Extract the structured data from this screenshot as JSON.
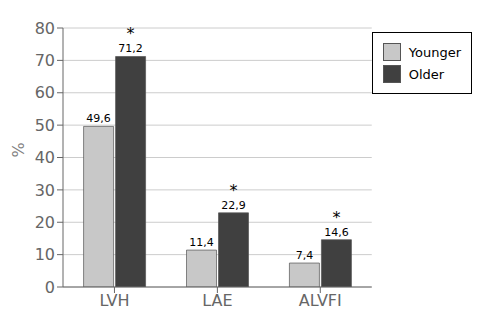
{
  "chart_data": {
    "type": "bar",
    "categories": [
      "LVH",
      "LAE",
      "ALVFI"
    ],
    "series": [
      {
        "name": "Younger",
        "color": "#c8c8c8",
        "values": [
          49.6,
          11.4,
          7.4
        ],
        "value_labels": [
          "49,6",
          "11,4",
          "7,4"
        ]
      },
      {
        "name": "Older",
        "color": "#404040",
        "values": [
          71.2,
          22.9,
          14.6
        ],
        "value_labels": [
          "71,2",
          "22,9",
          "14,6"
        ]
      }
    ],
    "ylabel": "%",
    "ylim": [
      0,
      80
    ],
    "yticks": [
      0,
      10,
      20,
      30,
      40,
      50,
      60,
      70,
      80
    ],
    "grid": true,
    "legend": "upper right",
    "data_labels": true,
    "annotations": [
      {
        "text": "*",
        "series": "Older",
        "category": "LVH"
      },
      {
        "text": "*",
        "series": "Older",
        "category": "LAE"
      },
      {
        "text": "*",
        "series": "Older",
        "category": "ALVFI"
      }
    ]
  }
}
